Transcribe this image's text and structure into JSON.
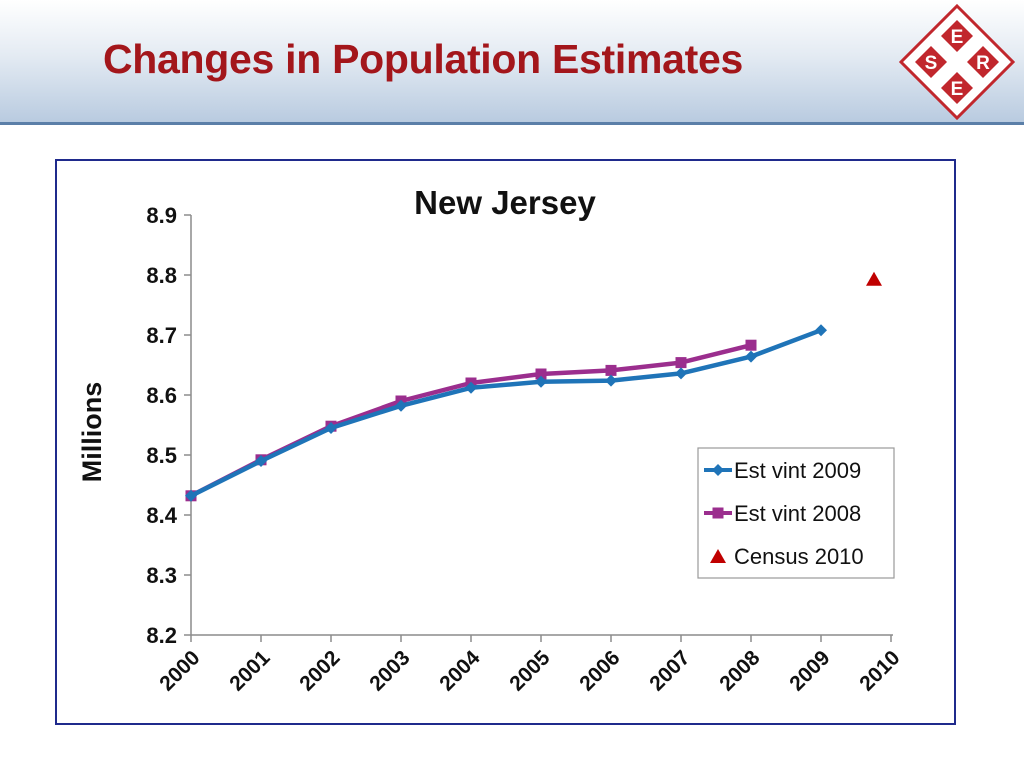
{
  "slide": {
    "title": "Changes in Population Estimates"
  },
  "logo": {
    "letters": {
      "top": "E",
      "left": "S",
      "right": "R",
      "bottom": "E"
    },
    "color": "#c1272d"
  },
  "chart_data": {
    "type": "line",
    "title": "New Jersey",
    "xlabel": "",
    "ylabel": "Millions",
    "categories": [
      "2000",
      "2001",
      "2002",
      "2003",
      "2004",
      "2005",
      "2006",
      "2007",
      "2008",
      "2009",
      "2010"
    ],
    "ylim": [
      8.2,
      8.9
    ],
    "yticks": [
      "8.2",
      "8.3",
      "8.4",
      "8.5",
      "8.6",
      "8.7",
      "8.8",
      "8.9"
    ],
    "grid": false,
    "legend": "right",
    "series": [
      {
        "name": "Est vint 2009",
        "marker": "diamond",
        "color": "#1f74b8",
        "values": [
          8.432,
          8.49,
          8.545,
          8.582,
          8.612,
          8.622,
          8.624,
          8.636,
          8.664,
          8.708,
          null
        ]
      },
      {
        "name": "Est vint 2008",
        "marker": "square",
        "color": "#9b2e8e",
        "values": [
          8.432,
          8.492,
          8.548,
          8.59,
          8.62,
          8.635,
          8.641,
          8.654,
          8.683,
          null,
          null
        ]
      },
      {
        "name": "Census 2010",
        "marker": "triangle",
        "color": "#c00000",
        "values": [
          null,
          null,
          null,
          null,
          null,
          null,
          null,
          null,
          null,
          null,
          8.792
        ]
      }
    ]
  }
}
